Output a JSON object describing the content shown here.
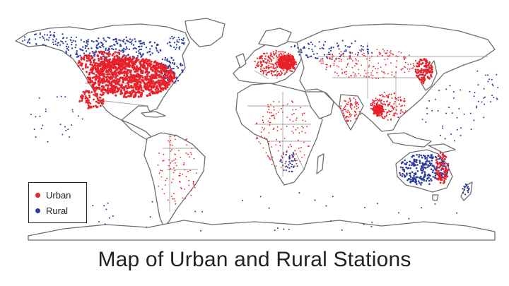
{
  "title": "Map of Urban and Rural Stations",
  "legend": {
    "items": [
      {
        "label": "Urban",
        "color": "#e8212a"
      },
      {
        "label": "Rural",
        "color": "#2e3f9a"
      }
    ]
  },
  "colors": {
    "urban": "#e8212a",
    "rural": "#2e3f9a",
    "coastline": "#6e6e6e",
    "background": "#ffffff"
  }
}
